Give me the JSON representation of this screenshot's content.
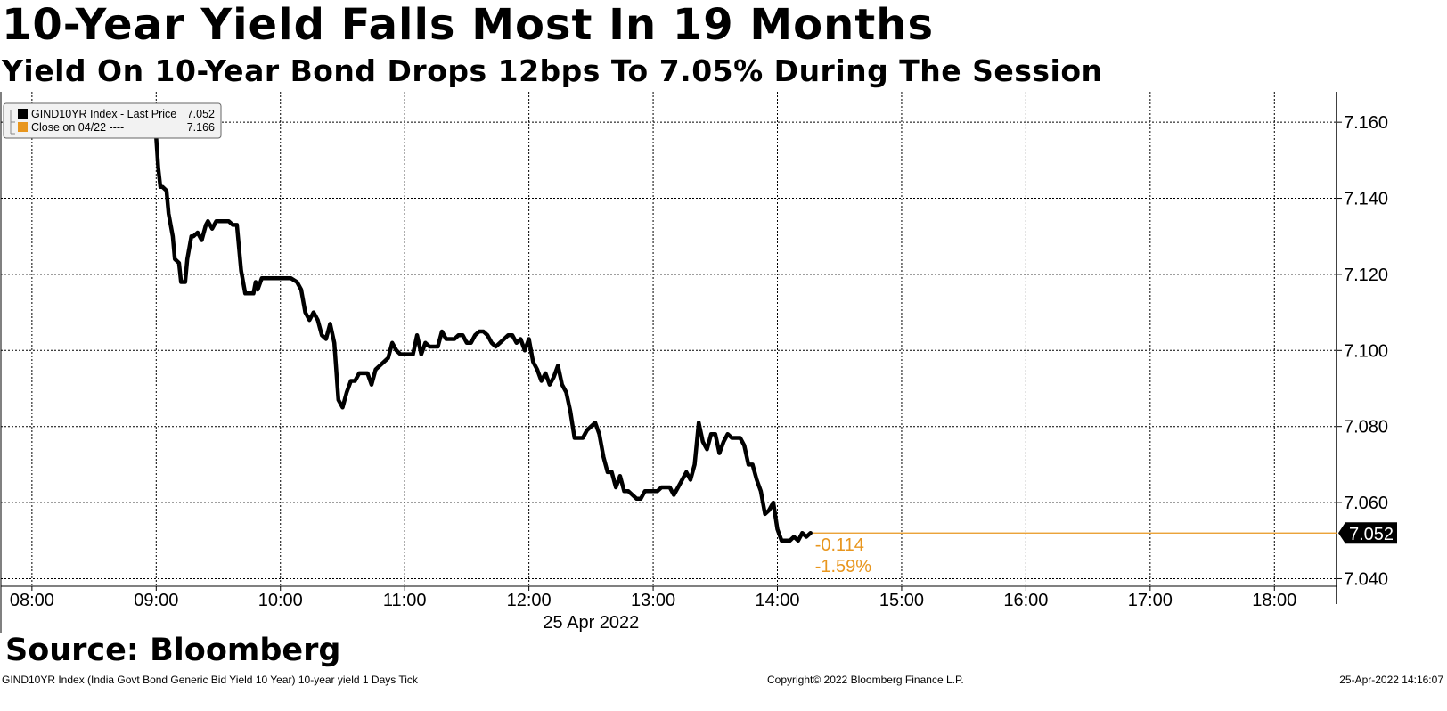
{
  "header": {
    "title": "10-Year Yield Falls Most In 19 Months",
    "subtitle": "Yield On 10-Year Bond Drops 12bps To 7.05% During The Session"
  },
  "source_label": "Source: Bloomberg",
  "footer": {
    "left": "GIND10YR Index (India Govt Bond Generic Bid Yield 10 Year) 10-year yield 1 Days  Tick",
    "center": "Copyright© 2022 Bloomberg Finance L.P.",
    "right": "25-Apr-2022 14:16:07"
  },
  "chart_data": {
    "type": "line",
    "date_label": "25 Apr 2022",
    "ylim": [
      7.038,
      7.168
    ],
    "xlim": [
      "07:45",
      "18:30"
    ],
    "y_ticks": [
      "7.040",
      "7.060",
      "7.080",
      "7.100",
      "7.120",
      "7.140",
      "7.160"
    ],
    "x_ticks": [
      "08:00",
      "09:00",
      "10:00",
      "11:00",
      "12:00",
      "13:00",
      "14:00",
      "15:00",
      "16:00",
      "17:00",
      "18:00"
    ],
    "grid": true,
    "legend_position": "top-left",
    "legend": [
      {
        "label": "GIND10YR Index - Last Price",
        "value": "7.052",
        "color": "#000000"
      },
      {
        "label": "Close on 04/22 ----",
        "value": "7.166",
        "color": "#e8961e"
      }
    ],
    "last_price_tag": "7.052",
    "change_value": "-0.114",
    "change_percent": "-1.59%",
    "reference_line": {
      "value": 7.052,
      "color": "#e8961e"
    },
    "series": [
      {
        "name": "GIND10YR Index - Last Price",
        "color": "#000000",
        "x": [
          "09:00",
          "09:01",
          "09:02",
          "09:03",
          "09:05",
          "09:06",
          "09:08",
          "09:09",
          "09:11",
          "09:12",
          "09:14",
          "09:15",
          "09:17",
          "09:18",
          "09:20",
          "09:22",
          "09:24",
          "09:25",
          "09:27",
          "09:29",
          "09:31",
          "09:33",
          "09:35",
          "09:37",
          "09:39",
          "09:41",
          "09:43",
          "09:45",
          "09:47",
          "09:48",
          "09:49",
          "09:51",
          "09:53",
          "09:56",
          "09:58",
          "10:00",
          "10:02",
          "10:05",
          "10:08",
          "10:10",
          "10:12",
          "10:14",
          "10:16",
          "10:18",
          "10:20",
          "10:22",
          "10:24",
          "10:26",
          "10:28",
          "10:30",
          "10:32",
          "10:34",
          "10:36",
          "10:38",
          "10:40",
          "10:42",
          "10:44",
          "10:46",
          "10:48",
          "10:50",
          "10:52",
          "10:54",
          "10:56",
          "10:58",
          "11:00",
          "11:02",
          "11:04",
          "11:06",
          "11:08",
          "11:10",
          "11:12",
          "11:14",
          "11:16",
          "11:18",
          "11:20",
          "11:22",
          "11:24",
          "11:26",
          "11:28",
          "11:30",
          "11:32",
          "11:34",
          "11:36",
          "11:38",
          "11:40",
          "11:42",
          "11:44",
          "11:46",
          "11:48",
          "11:50",
          "11:52",
          "11:54",
          "11:56",
          "11:58",
          "12:00",
          "12:02",
          "12:04",
          "12:06",
          "12:08",
          "12:10",
          "12:12",
          "12:14",
          "12:16",
          "12:18",
          "12:20",
          "12:22",
          "12:24",
          "12:26",
          "12:28",
          "12:30",
          "12:32",
          "12:34",
          "12:36",
          "12:38",
          "12:40",
          "12:42",
          "12:44",
          "12:46",
          "12:48",
          "12:50",
          "12:52",
          "12:54",
          "12:56",
          "12:58",
          "13:00",
          "13:02",
          "13:04",
          "13:06",
          "13:08",
          "13:10",
          "13:12",
          "13:14",
          "13:16",
          "13:18",
          "13:20",
          "13:22",
          "13:24",
          "13:26",
          "13:28",
          "13:30",
          "13:32",
          "13:34",
          "13:36",
          "13:38",
          "13:40",
          "13:42",
          "13:44",
          "13:46",
          "13:48",
          "13:50",
          "13:52",
          "13:54",
          "13:56",
          "13:58",
          "14:00",
          "14:02",
          "14:04",
          "14:06",
          "14:08",
          "14:10",
          "14:12",
          "14:14",
          "14:16"
        ],
        "values": [
          7.156,
          7.148,
          7.143,
          7.143,
          7.142,
          7.136,
          7.13,
          7.124,
          7.123,
          7.118,
          7.118,
          7.124,
          7.13,
          7.13,
          7.131,
          7.129,
          7.133,
          7.134,
          7.132,
          7.134,
          7.134,
          7.134,
          7.134,
          7.133,
          7.133,
          7.121,
          7.115,
          7.115,
          7.115,
          7.118,
          7.116,
          7.119,
          7.119,
          7.119,
          7.119,
          7.119,
          7.119,
          7.119,
          7.118,
          7.116,
          7.11,
          7.108,
          7.11,
          7.108,
          7.104,
          7.103,
          7.107,
          7.102,
          7.087,
          7.085,
          7.089,
          7.092,
          7.092,
          7.094,
          7.094,
          7.094,
          7.091,
          7.095,
          7.096,
          7.097,
          7.098,
          7.102,
          7.1,
          7.099,
          7.099,
          7.099,
          7.099,
          7.104,
          7.099,
          7.102,
          7.101,
          7.101,
          7.101,
          7.105,
          7.103,
          7.103,
          7.103,
          7.104,
          7.104,
          7.102,
          7.102,
          7.104,
          7.105,
          7.105,
          7.104,
          7.102,
          7.101,
          7.102,
          7.103,
          7.104,
          7.104,
          7.102,
          7.103,
          7.1,
          7.103,
          7.097,
          7.095,
          7.092,
          7.094,
          7.091,
          7.093,
          7.096,
          7.091,
          7.089,
          7.084,
          7.077,
          7.077,
          7.077,
          7.079,
          7.08,
          7.081,
          7.078,
          7.072,
          7.068,
          7.068,
          7.064,
          7.067,
          7.063,
          7.063,
          7.062,
          7.061,
          7.061,
          7.063,
          7.063,
          7.063,
          7.063,
          7.064,
          7.064,
          7.064,
          7.062,
          7.064,
          7.066,
          7.068,
          7.066,
          7.07,
          7.081,
          7.076,
          7.074,
          7.078,
          7.078,
          7.073,
          7.076,
          7.078,
          7.077,
          7.077,
          7.077,
          7.075,
          7.07,
          7.07,
          7.066,
          7.063,
          7.057,
          7.058,
          7.06,
          7.053,
          7.05,
          7.05,
          7.05,
          7.051,
          7.05,
          7.052,
          7.051,
          7.052
        ]
      }
    ]
  }
}
